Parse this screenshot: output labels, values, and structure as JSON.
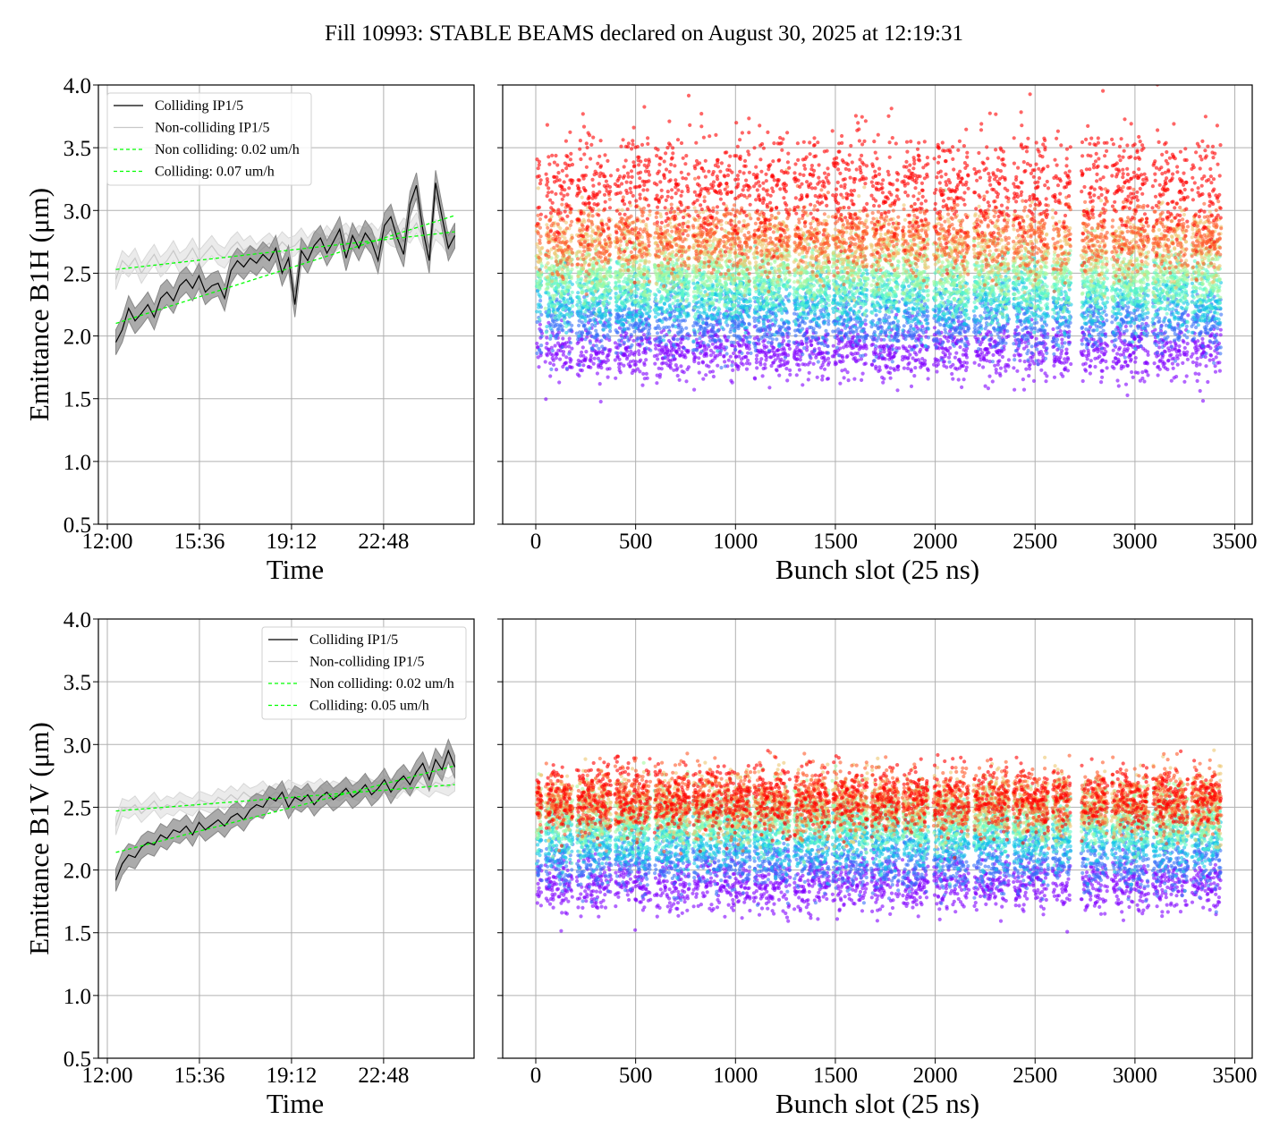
{
  "figure_title": "Fill 10993: STABLE BEAMS declared on August 30, 2025 at 12:19:31",
  "colors": {
    "colliding": "#000000",
    "non_colliding": "#c8c8c8",
    "fit": "#00ff00",
    "grid": "#b0b0b0",
    "colormap": "rainbow"
  },
  "chart_data": [
    {
      "id": "b1h-time",
      "type": "line",
      "xlabel": "Time",
      "ylabel": "Emittance B1H (μm)",
      "ylim": [
        0.5,
        4.0
      ],
      "yticks": [
        "0.5",
        "1.0",
        "1.5",
        "2.0",
        "2.5",
        "3.0",
        "3.5",
        "4.0"
      ],
      "xticks": [
        "12:00",
        "15:36",
        "19:12",
        "22:48"
      ],
      "grid": true,
      "legend_position": "top-left",
      "legend": [
        "Colliding IP1/5",
        "Non-colliding IP1/5",
        "Non colliding: 0.02 um/h",
        "Colliding: 0.07 um/h"
      ],
      "x": [
        "12:20",
        "12:35",
        "12:50",
        "13:05",
        "13:20",
        "13:35",
        "13:50",
        "14:05",
        "14:20",
        "14:35",
        "14:50",
        "15:05",
        "15:20",
        "15:35",
        "15:50",
        "16:05",
        "16:20",
        "16:35",
        "16:50",
        "17:05",
        "17:20",
        "17:35",
        "17:50",
        "18:05",
        "18:20",
        "18:35",
        "18:50",
        "19:05",
        "19:20",
        "19:35",
        "19:50",
        "20:05",
        "20:20",
        "20:35",
        "20:50",
        "21:05",
        "21:20",
        "21:35",
        "21:50",
        "22:05",
        "22:20",
        "22:35",
        "22:50",
        "23:05",
        "23:20",
        "23:35",
        "23:50",
        "00:05",
        "00:20",
        "00:35",
        "00:50",
        "01:05",
        "01:20",
        "01:35"
      ],
      "series": [
        {
          "name": "Colliding IP1/5",
          "spread": 0.1,
          "values": [
            1.95,
            2.05,
            2.22,
            2.12,
            2.18,
            2.25,
            2.15,
            2.3,
            2.35,
            2.28,
            2.4,
            2.45,
            2.38,
            2.48,
            2.35,
            2.4,
            2.42,
            2.3,
            2.52,
            2.6,
            2.55,
            2.62,
            2.58,
            2.65,
            2.6,
            2.7,
            2.5,
            2.62,
            2.25,
            2.68,
            2.6,
            2.72,
            2.78,
            2.66,
            2.75,
            2.85,
            2.62,
            2.8,
            2.7,
            2.82,
            2.75,
            2.6,
            2.88,
            2.95,
            2.78,
            2.65,
            3.05,
            3.2,
            2.85,
            2.6,
            3.22,
            2.95,
            2.7,
            2.8
          ]
        },
        {
          "name": "Non-colliding IP1/5",
          "spread": 0.08,
          "values": [
            2.45,
            2.6,
            2.55,
            2.62,
            2.5,
            2.58,
            2.65,
            2.55,
            2.6,
            2.68,
            2.58,
            2.62,
            2.7,
            2.6,
            2.66,
            2.72,
            2.65,
            2.62,
            2.7,
            2.75,
            2.68,
            2.72,
            2.65,
            2.7,
            2.74,
            2.68,
            2.75,
            2.7,
            2.72,
            2.78,
            2.7,
            2.76,
            2.72,
            2.8,
            2.74,
            2.78,
            2.82,
            2.75,
            2.8,
            2.78,
            2.82,
            2.76,
            2.85,
            2.8,
            2.78,
            2.86,
            2.82,
            2.9,
            2.78,
            2.7,
            2.85,
            2.8,
            2.72,
            2.78
          ]
        }
      ],
      "fits": [
        {
          "name": "Non colliding: 0.02 um/h",
          "from": [
            "12:20",
            2.53
          ],
          "to": [
            "01:35",
            2.83
          ]
        },
        {
          "name": "Colliding: 0.07 um/h",
          "from": [
            "12:20",
            2.1
          ],
          "to": [
            "01:35",
            2.96
          ]
        }
      ]
    },
    {
      "id": "b1h-slot",
      "type": "scatter",
      "xlabel": "Bunch slot (25 ns)",
      "ylim": [
        0.5,
        4.0
      ],
      "xlim": [
        -150,
        3550
      ],
      "xticks": [
        "0",
        "500",
        "1000",
        "1500",
        "2000",
        "2500",
        "3000",
        "3500"
      ],
      "grid": true,
      "color_by": "time (rainbow, early=purple, late=red)",
      "trains": [
        [
          5,
          30
        ],
        [
          50,
          184
        ],
        [
          206,
          376
        ],
        [
          398,
          573
        ],
        [
          596,
          770
        ],
        [
          788,
          931
        ],
        [
          940,
          1075
        ],
        [
          1093,
          1272
        ],
        [
          1294,
          1469
        ],
        [
          1487,
          1661
        ],
        [
          1680,
          1818
        ],
        [
          1836,
          1966
        ],
        [
          1993,
          2167
        ],
        [
          2194,
          2369
        ],
        [
          2391,
          2566
        ],
        [
          2588,
          2678
        ],
        [
          2732,
          2862
        ],
        [
          2884,
          3068
        ],
        [
          3090,
          3265
        ],
        [
          3284,
          3430
        ]
      ],
      "time_groups": [
        {
          "color": "#8000ff",
          "mean": 1.88,
          "sd": 0.12
        },
        {
          "color": "#376ff9",
          "mean": 2.1,
          "sd": 0.12
        },
        {
          "color": "#12c7e6",
          "mean": 2.27,
          "sd": 0.12
        },
        {
          "color": "#5bf9c7",
          "mean": 2.4,
          "sd": 0.12
        },
        {
          "color": "#a4f99f",
          "mean": 2.5,
          "sd": 0.12
        },
        {
          "color": "#edc76f",
          "mean": 2.72,
          "sd": 0.14
        },
        {
          "color": "#ff5a2a",
          "mean": 2.78,
          "sd": 0.14
        },
        {
          "color": "#ff0000",
          "mean": 3.2,
          "sd": 0.22
        }
      ]
    },
    {
      "id": "b1v-time",
      "type": "line",
      "xlabel": "Time",
      "ylabel": "Emittance B1V (μm)",
      "ylim": [
        0.5,
        4.0
      ],
      "yticks": [
        "0.5",
        "1.0",
        "1.5",
        "2.0",
        "2.5",
        "3.0",
        "3.5",
        "4.0"
      ],
      "xticks": [
        "12:00",
        "15:36",
        "19:12",
        "22:48"
      ],
      "grid": true,
      "legend_position": "top-right",
      "legend": [
        "Colliding IP1/5",
        "Non-colliding IP1/5",
        "Non colliding: 0.02 um/h",
        "Colliding: 0.05 um/h"
      ],
      "x": [
        "12:20",
        "12:35",
        "12:50",
        "13:05",
        "13:20",
        "13:35",
        "13:50",
        "14:05",
        "14:20",
        "14:35",
        "14:50",
        "15:05",
        "15:20",
        "15:35",
        "15:50",
        "16:05",
        "16:20",
        "16:35",
        "16:50",
        "17:05",
        "17:20",
        "17:35",
        "17:50",
        "18:05",
        "18:20",
        "18:35",
        "18:50",
        "19:05",
        "19:20",
        "19:35",
        "19:50",
        "20:05",
        "20:20",
        "20:35",
        "20:50",
        "21:05",
        "21:20",
        "21:35",
        "21:50",
        "22:05",
        "22:20",
        "22:35",
        "22:50",
        "23:05",
        "23:20",
        "23:35",
        "23:50",
        "00:05",
        "00:20",
        "00:35",
        "00:50",
        "01:05",
        "01:20",
        "01:35"
      ],
      "series": [
        {
          "name": "Colliding IP1/5",
          "spread": 0.09,
          "values": [
            1.92,
            2.05,
            2.12,
            2.1,
            2.18,
            2.22,
            2.2,
            2.28,
            2.25,
            2.32,
            2.3,
            2.35,
            2.28,
            2.38,
            2.32,
            2.36,
            2.4,
            2.35,
            2.42,
            2.45,
            2.4,
            2.48,
            2.52,
            2.5,
            2.58,
            2.55,
            2.62,
            2.5,
            2.58,
            2.55,
            2.6,
            2.52,
            2.58,
            2.62,
            2.56,
            2.6,
            2.65,
            2.58,
            2.62,
            2.68,
            2.6,
            2.65,
            2.72,
            2.62,
            2.7,
            2.75,
            2.68,
            2.78,
            2.85,
            2.72,
            2.88,
            2.8,
            2.95,
            2.82
          ]
        },
        {
          "name": "Non-colliding IP1/5",
          "spread": 0.07,
          "values": [
            2.35,
            2.5,
            2.48,
            2.52,
            2.45,
            2.5,
            2.55,
            2.48,
            2.52,
            2.5,
            2.55,
            2.52,
            2.5,
            2.56,
            2.54,
            2.52,
            2.58,
            2.55,
            2.6,
            2.56,
            2.62,
            2.58,
            2.6,
            2.64,
            2.58,
            2.62,
            2.6,
            2.65,
            2.62,
            2.6,
            2.64,
            2.62,
            2.66,
            2.6,
            2.64,
            2.62,
            2.66,
            2.64,
            2.62,
            2.68,
            2.65,
            2.63,
            2.68,
            2.66,
            2.64,
            2.7,
            2.66,
            2.72,
            2.68,
            2.65,
            2.7,
            2.68,
            2.66,
            2.7
          ]
        }
      ],
      "fits": [
        {
          "name": "Non colliding: 0.02 um/h",
          "from": [
            "12:20",
            2.47
          ],
          "to": [
            "01:35",
            2.68
          ]
        },
        {
          "name": "Colliding: 0.05 um/h",
          "from": [
            "12:20",
            2.14
          ],
          "to": [
            "01:35",
            2.83
          ]
        }
      ]
    },
    {
      "id": "b1v-slot",
      "type": "scatter",
      "xlabel": "Bunch slot (25 ns)",
      "ylim": [
        0.5,
        4.0
      ],
      "xlim": [
        -150,
        3550
      ],
      "xticks": [
        "0",
        "500",
        "1000",
        "1500",
        "2000",
        "2500",
        "3000",
        "3500"
      ],
      "grid": true,
      "color_by": "time (rainbow, early=purple, late=red)",
      "trains": [
        [
          5,
          30
        ],
        [
          50,
          184
        ],
        [
          206,
          376
        ],
        [
          398,
          573
        ],
        [
          596,
          770
        ],
        [
          788,
          931
        ],
        [
          940,
          1075
        ],
        [
          1093,
          1272
        ],
        [
          1294,
          1469
        ],
        [
          1487,
          1661
        ],
        [
          1680,
          1818
        ],
        [
          1836,
          1966
        ],
        [
          1993,
          2167
        ],
        [
          2194,
          2369
        ],
        [
          2391,
          2566
        ],
        [
          2588,
          2678
        ],
        [
          2732,
          2862
        ],
        [
          2884,
          3068
        ],
        [
          3090,
          3265
        ],
        [
          3284,
          3430
        ]
      ],
      "time_groups": [
        {
          "color": "#8000ff",
          "mean": 1.88,
          "sd": 0.11
        },
        {
          "color": "#376ff9",
          "mean": 2.05,
          "sd": 0.11
        },
        {
          "color": "#12c7e6",
          "mean": 2.22,
          "sd": 0.11
        },
        {
          "color": "#5bf9c7",
          "mean": 2.35,
          "sd": 0.11
        },
        {
          "color": "#a4f99f",
          "mean": 2.45,
          "sd": 0.12
        },
        {
          "color": "#edc76f",
          "mean": 2.52,
          "sd": 0.13
        },
        {
          "color": "#ff5a2a",
          "mean": 2.55,
          "sd": 0.13
        },
        {
          "color": "#ff0000",
          "mean": 2.57,
          "sd": 0.13
        }
      ]
    }
  ]
}
